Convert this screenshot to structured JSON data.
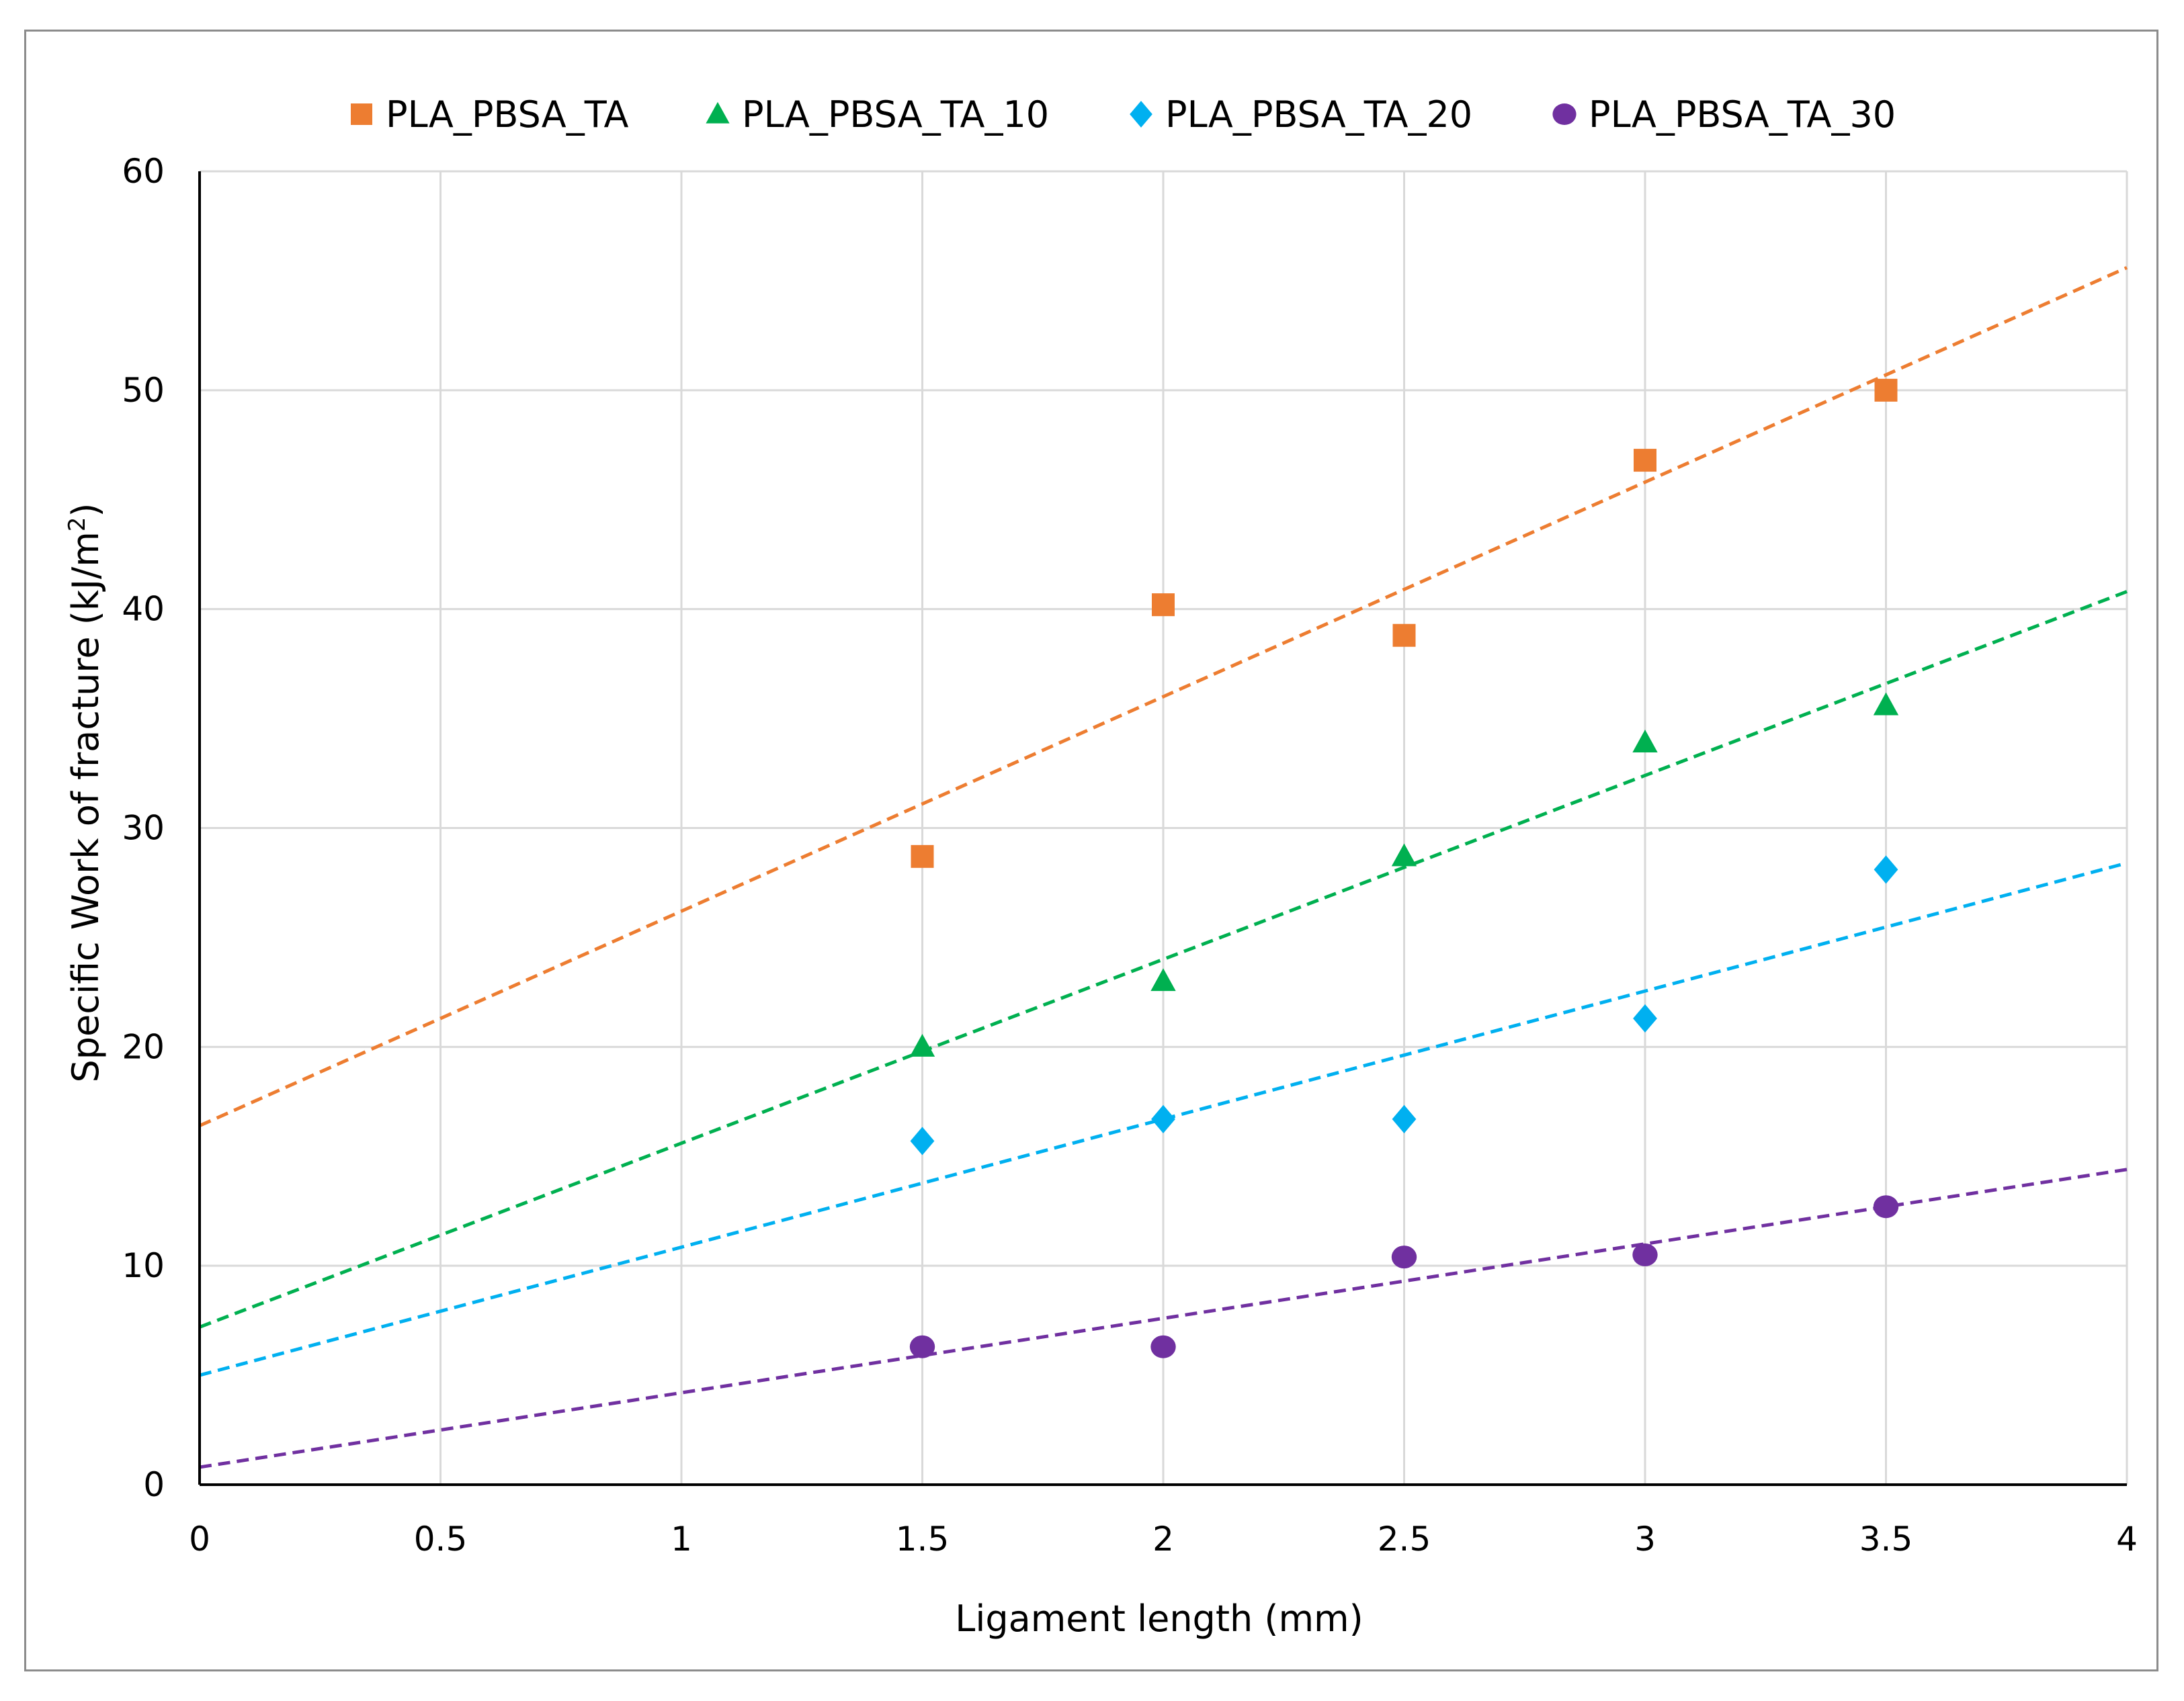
{
  "chart_data": {
    "type": "scatter",
    "title": "",
    "xlabel": "Ligament length (mm)",
    "ylabel_main": "Specific Work of fracture (kJ/m",
    "ylabel_sup": "2",
    "ylabel_close": ")",
    "xlim": [
      0,
      4
    ],
    "ylim": [
      0,
      60
    ],
    "xticks": [
      0,
      0.5,
      1,
      1.5,
      2,
      2.5,
      3,
      3.5,
      4
    ],
    "xtick_labels": [
      "0",
      "0.5",
      "1",
      "1.5",
      "2",
      "2.5",
      "3",
      "3.5",
      "4"
    ],
    "yticks": [
      0,
      10,
      20,
      30,
      40,
      50,
      60
    ],
    "ytick_labels": [
      "0",
      "10",
      "20",
      "30",
      "40",
      "50",
      "60"
    ],
    "grid": true,
    "legend_position": "top",
    "series": [
      {
        "name": "PLA_PBSA_TA",
        "color": "#ED7D31",
        "marker": "square",
        "x": [
          1.5,
          2,
          2.5,
          3,
          3.5
        ],
        "y": [
          28.7,
          40.2,
          38.8,
          46.8,
          50.0
        ],
        "trend": {
          "intercept": 16.4,
          "slope": 9.8
        }
      },
      {
        "name": "PLA_PBSA_TA_10",
        "color": "#00B050",
        "marker": "triangle",
        "x": [
          1.5,
          2,
          2.5,
          3,
          3.5
        ],
        "y": [
          20.0,
          23.0,
          28.7,
          33.9,
          35.6
        ],
        "trend": {
          "intercept": 7.2,
          "slope": 8.4
        }
      },
      {
        "name": "PLA_PBSA_TA_20",
        "color": "#00B0F0",
        "marker": "diamond",
        "x": [
          1.5,
          2,
          2.5,
          3,
          3.5
        ],
        "y": [
          15.7,
          16.7,
          16.7,
          21.3,
          28.1
        ],
        "trend": {
          "intercept": 5.0,
          "slope": 5.85
        }
      },
      {
        "name": "PLA_PBSA_TA_30",
        "color": "#7030A0",
        "marker": "circle",
        "x": [
          1.5,
          2,
          2.5,
          3,
          3.5
        ],
        "y": [
          6.3,
          6.3,
          10.4,
          10.5,
          12.7
        ],
        "trend": {
          "intercept": 0.8,
          "slope": 3.4
        }
      }
    ]
  }
}
